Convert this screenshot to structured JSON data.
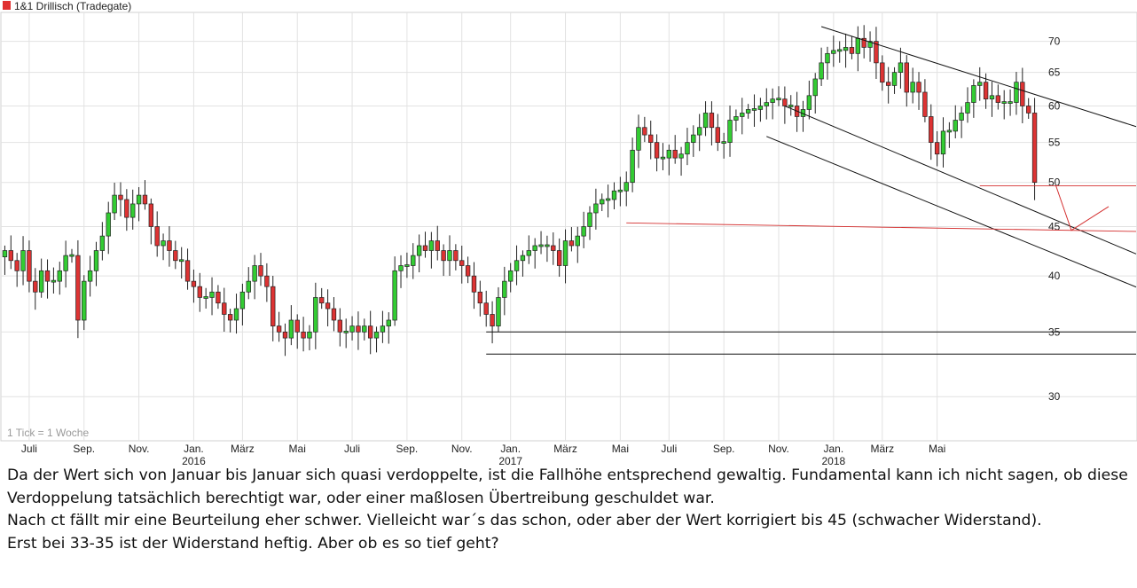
{
  "chart_data": {
    "type": "candlestick",
    "title": "1&1 Drillisch (Tradegate)",
    "series_color": "#e03030",
    "up_color": "#33cc33",
    "down_color": "#dd3333",
    "note": "1 Tick = 1 Woche",
    "y_scale": "log",
    "ylim": [
      27,
      75
    ],
    "y_ticks": [
      30,
      35,
      40,
      45,
      50,
      55,
      60,
      65,
      70
    ],
    "x_ticks": [
      {
        "week": 4,
        "label": "Juli",
        "year": ""
      },
      {
        "week": 13,
        "label": "Sep.",
        "year": ""
      },
      {
        "week": 22,
        "label": "Nov.",
        "year": ""
      },
      {
        "week": 31,
        "label": "Jan.",
        "year": "2016"
      },
      {
        "week": 39,
        "label": "März",
        "year": ""
      },
      {
        "week": 48,
        "label": "Mai",
        "year": ""
      },
      {
        "week": 57,
        "label": "Juli",
        "year": ""
      },
      {
        "week": 66,
        "label": "Sep.",
        "year": ""
      },
      {
        "week": 75,
        "label": "Nov.",
        "year": ""
      },
      {
        "week": 83,
        "label": "Jan.",
        "year": "2017"
      },
      {
        "week": 92,
        "label": "März",
        "year": ""
      },
      {
        "week": 101,
        "label": "Mai",
        "year": ""
      },
      {
        "week": 109,
        "label": "Juli",
        "year": ""
      },
      {
        "week": 118,
        "label": "Sep.",
        "year": ""
      },
      {
        "week": 127,
        "label": "Nov.",
        "year": ""
      },
      {
        "week": 136,
        "label": "Jan.",
        "year": "2018"
      },
      {
        "week": 144,
        "label": "März",
        "year": ""
      },
      {
        "week": 153,
        "label": "Mai",
        "year": ""
      }
    ],
    "closes": [
      42.5,
      41.5,
      40.5,
      42.5,
      39.5,
      38.5,
      40.5,
      39.5,
      39.5,
      40.5,
      42.0,
      42.0,
      36.0,
      39.5,
      40.5,
      42.5,
      44.0,
      46.5,
      48.5,
      48.0,
      46.0,
      47.5,
      48.5,
      47.5,
      45.0,
      43.0,
      43.5,
      42.5,
      41.5,
      41.5,
      39.5,
      39.0,
      38.0,
      38.0,
      38.5,
      37.5,
      36.5,
      36.0,
      37.0,
      38.5,
      39.5,
      41.0,
      40.0,
      39.0,
      35.5,
      35.0,
      34.5,
      36.0,
      35.0,
      34.5,
      35.0,
      38.0,
      37.5,
      37.0,
      36.0,
      35.0,
      35.0,
      35.5,
      35.0,
      35.5,
      34.5,
      35.0,
      35.5,
      36.0,
      40.5,
      41.0,
      41.0,
      42.0,
      43.0,
      42.5,
      43.5,
      42.5,
      41.5,
      42.5,
      41.5,
      41.0,
      40.0,
      38.5,
      37.5,
      36.5,
      35.5,
      38.0,
      39.5,
      40.5,
      41.5,
      42.0,
      42.5,
      43.0,
      43.0,
      43.0,
      42.5,
      41.0,
      43.5,
      43.0,
      44.0,
      45.0,
      46.5,
      47.5,
      48.0,
      48.0,
      49.0,
      49.0,
      50.0,
      54.0,
      57.0,
      56.0,
      55.0,
      53.0,
      53.0,
      54.0,
      53.0,
      53.5,
      55.0,
      56.0,
      57.0,
      59.0,
      57.0,
      55.0,
      55.0,
      58.0,
      58.5,
      59.0,
      59.5,
      59.5,
      60.0,
      60.5,
      61.0,
      61.0,
      60.0,
      60.0,
      58.5,
      59.5,
      61.5,
      64.0,
      66.5,
      68.0,
      68.5,
      68.5,
      69.0,
      68.0,
      70.5,
      69.0,
      70.0,
      66.5,
      63.5,
      63.0,
      65.0,
      66.5,
      62.0,
      63.5,
      62.0,
      58.5,
      55.0,
      53.5,
      56.5,
      56.5,
      58.0,
      59.0,
      60.5,
      63.0,
      63.5,
      61.0,
      61.5,
      60.5,
      60.5,
      60.5,
      63.5,
      60.0,
      59.0,
      50.0
    ],
    "annotations": [
      {
        "kind": "trend-channel-upper",
        "from": [
          134,
          72.5
        ],
        "to": [
          175,
          60.0
        ]
      },
      {
        "kind": "trend-channel-middle",
        "from": [
          128,
          60.0
        ],
        "to": [
          175,
          45.0
        ]
      },
      {
        "kind": "trend-channel-lower",
        "from": [
          125,
          55.8
        ],
        "to": [
          175,
          41.5
        ]
      },
      {
        "kind": "support",
        "from": [
          79,
          35.0
        ],
        "to": [
          175,
          35.0
        ]
      },
      {
        "kind": "support",
        "from": [
          79,
          33.2
        ],
        "to": [
          175,
          33.2
        ]
      },
      {
        "kind": "target-line",
        "from": [
          102,
          45.4
        ],
        "to": [
          175,
          44.6
        ]
      },
      {
        "kind": "current-level",
        "from": [
          160,
          49.6
        ],
        "to": [
          175,
          49.6
        ]
      }
    ]
  },
  "commentary": {
    "paragraph_1": "Da der Wert sich von Januar bis Januar sich quasi verdoppelte, ist die Fallhöhe entsprechend gewaltig. Fundamental kann ich nicht sagen, ob diese Verdoppelung tatsächlich berechtigt war, oder einer maßlosen Übertreibung geschuldet war.",
    "paragraph_2": "Nach ct fällt mir eine Beurteilung eher schwer. Vielleicht war´s das schon, oder aber der Wert korrigiert bis 45 (schwacher Widerstand).",
    "paragraph_3": "Erst bei 33-35 ist der Widerstand heftig. Aber ob es so tief geht?"
  }
}
